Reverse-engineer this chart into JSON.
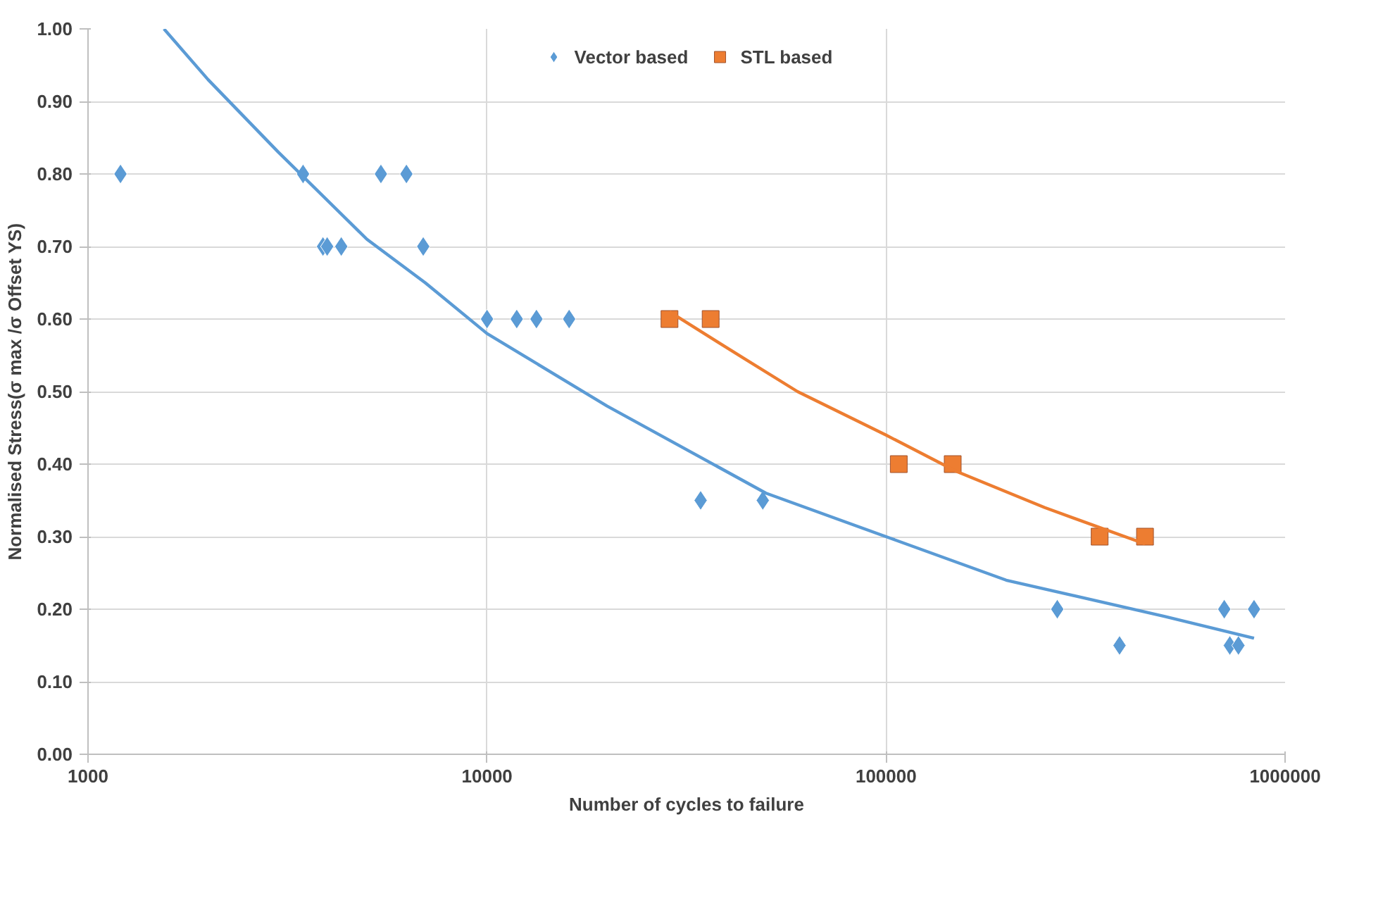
{
  "chart_data": {
    "type": "scatter",
    "xlabel": "Number of cycles to failure",
    "ylabel": "Normalised Stress(σ max /σ Offset YS)",
    "log": "x",
    "grid": true,
    "legend": "top",
    "xlim": [
      1000,
      1000000
    ],
    "xticks": [
      1000,
      10000,
      100000,
      1000000
    ],
    "ylim": [
      0,
      1
    ],
    "yticks": [
      {
        "value": 0,
        "label": "0.00"
      },
      {
        "value": 0.1,
        "label": "0.10"
      },
      {
        "value": 0.2,
        "label": "0.20"
      },
      {
        "value": 0.3,
        "label": "0.30"
      },
      {
        "value": 0.4,
        "label": "0.40"
      },
      {
        "value": 0.5,
        "label": "0.50"
      },
      {
        "value": 0.6,
        "label": "0.60"
      },
      {
        "value": 0.7,
        "label": "0.70"
      },
      {
        "value": 0.8,
        "label": "0.80"
      },
      {
        "value": 0.9,
        "label": "0.90"
      },
      {
        "value": 1.0,
        "label": "1.00"
      }
    ],
    "series": [
      {
        "name": "Vector based",
        "marker": "diamond",
        "color": "#5b9bd5",
        "x": [
          1206,
          3459,
          3880,
          3975,
          4312,
          5420,
          6280,
          6920,
          10000,
          11870,
          13300,
          16060,
          34300,
          49100,
          268600,
          384700,
          704000,
          727000,
          764000,
          836000
        ],
        "values": [
          0.8,
          0.8,
          0.7,
          0.7,
          0.7,
          0.8,
          0.8,
          0.7,
          0.6,
          0.6,
          0.6,
          0.6,
          0.35,
          0.35,
          0.2,
          0.15,
          0.2,
          0.15,
          0.15,
          0.2
        ]
      },
      {
        "name": "STL based",
        "marker": "square",
        "color": "#ed7d31",
        "x": [
          28660,
          36340,
          107600,
          146900,
          343000,
          445600
        ],
        "values": [
          0.6,
          0.6,
          0.4,
          0.4,
          0.3,
          0.3
        ]
      },
      {
        "type": "line",
        "line_style": "solid",
        "color": "#5b9bd5",
        "x": [
          1550,
          2000,
          3000,
          5000,
          7000,
          10000,
          20000,
          50000,
          100000,
          200000,
          500000,
          836000
        ],
        "values": [
          1.0,
          0.93,
          0.83,
          0.71,
          0.65,
          0.58,
          0.48,
          0.36,
          0.3,
          0.24,
          0.19,
          0.16
        ]
      },
      {
        "type": "line",
        "line_style": "solid",
        "color": "#ed7d31",
        "x": [
          28660,
          40000,
          60000,
          100000,
          150000,
          250000,
          445600
        ],
        "values": [
          0.61,
          0.56,
          0.5,
          0.44,
          0.39,
          0.34,
          0.29
        ]
      }
    ]
  }
}
